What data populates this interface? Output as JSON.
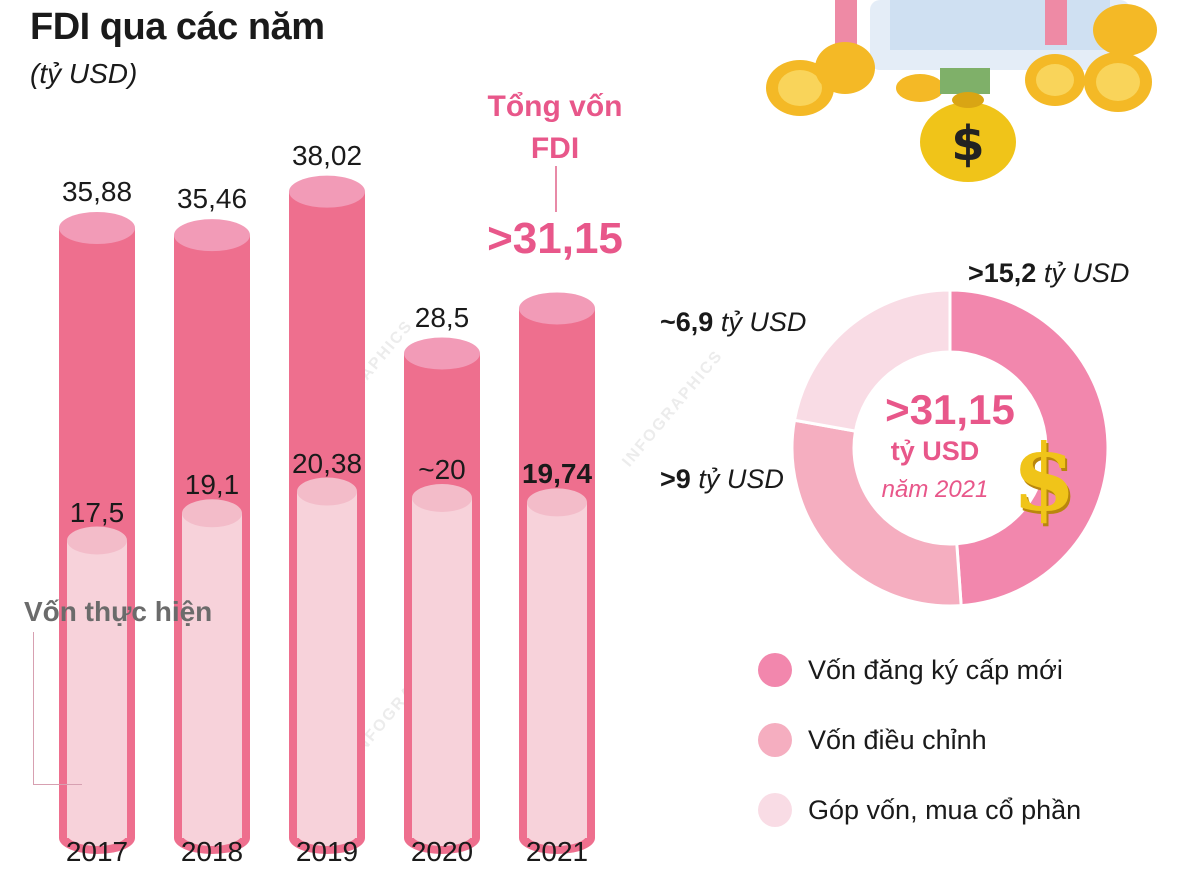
{
  "header": {
    "title": "FDI qua các năm",
    "subtitle": "(tỷ USD)"
  },
  "colors": {
    "bar_total": "#ee6f8e",
    "bar_total_top": "#f29bb7",
    "bar_realized": "#f7d2da",
    "bar_realized_top": "#f3bcc9",
    "accent": "#e8578a",
    "donut_new": "#f287ad",
    "donut_adjust": "#f5aec0",
    "donut_contrib": "#f9dce5",
    "gold": "#f0c419"
  },
  "chart_data": [
    {
      "type": "bar",
      "title": "FDI qua các năm",
      "subtitle": "(tỷ USD)",
      "categories": [
        "2017",
        "2018",
        "2019",
        "2020",
        "2021"
      ],
      "series": [
        {
          "name": "Tổng vốn FDI",
          "values": [
            35.88,
            35.46,
            38.02,
            28.5,
            31.15
          ]
        },
        {
          "name": "Vốn thực hiện",
          "values": [
            17.5,
            19.1,
            20.38,
            20,
            19.74
          ]
        }
      ],
      "total_labels": [
        "35,88",
        "35,46",
        "38,02",
        "28,5",
        ">31,15"
      ],
      "realized_labels": [
        "17,5",
        "19,1",
        "20,38",
        "~20",
        "19,74"
      ],
      "ylim": [
        0,
        40
      ]
    },
    {
      "type": "pie",
      "style": "donut",
      "center_value": ">31,15",
      "center_unit": "tỷ USD",
      "center_note": "năm 2021",
      "slices": [
        {
          "name": "Vốn đăng ký cấp mới",
          "value": 15.2,
          "label": ">15,2",
          "unit": "tỷ USD",
          "color": "#f287ad"
        },
        {
          "name": "Vốn điều chỉnh",
          "value": 9,
          "label": ">9",
          "unit": "tỷ USD",
          "color": "#f5aec0"
        },
        {
          "name": "Góp vốn, mua cổ phần",
          "value": 6.9,
          "label": "~6,9",
          "unit": "tỷ USD",
          "color": "#f9dce5"
        }
      ]
    }
  ],
  "annotations": {
    "realized_label": "Vốn thực hiện",
    "total_callout_title": "Tổng vốn\nFDI",
    "total_callout_value": ">31,15"
  },
  "legend": [
    {
      "label": "Vốn đăng ký cấp mới",
      "color": "#f287ad"
    },
    {
      "label": "Vốn điều chỉnh",
      "color": "#f5aec0"
    },
    {
      "label": "Góp vốn, mua cổ phần",
      "color": "#f9dce5"
    }
  ],
  "icons": [
    "money-bag-icon",
    "coin-stack-icon",
    "dollar-sign-icon"
  ]
}
